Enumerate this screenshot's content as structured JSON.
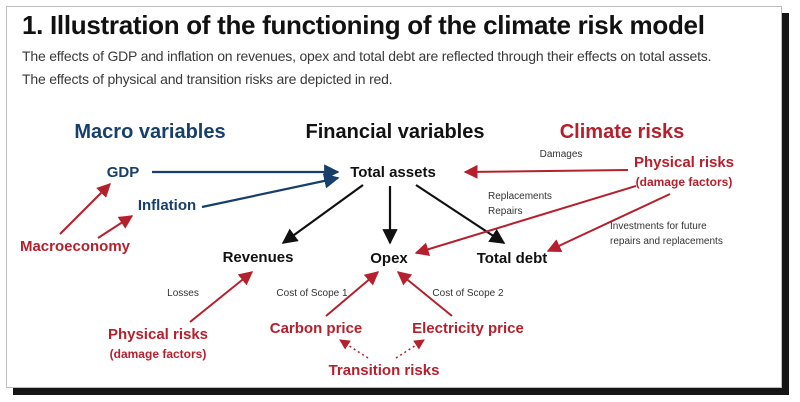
{
  "title": "1.  Illustration of the functioning of the climate risk model",
  "subtitle_line1": "The effects of GDP and inflation on revenues, opex and total debt are reflected through their effects on total assets.",
  "subtitle_line2": "The effects of physical and transition risks are depicted in red.",
  "colors": {
    "macro": "#173f6b",
    "climate": "#b5202e",
    "financial": "#111111",
    "note": "#333333"
  },
  "headers": {
    "macro": "Macro variables",
    "financial": "Financial variables",
    "climate": "Climate risks"
  },
  "nodes": {
    "gdp": "GDP",
    "inflation": "Inflation",
    "macroeconomy": "Macroeconomy",
    "total_assets": "Total assets",
    "revenues": "Revenues",
    "opex": "Opex",
    "total_debt": "Total debt",
    "physical_risks_right": "Physical risks",
    "physical_risks_right_sub": "(damage factors)",
    "physical_risks_left": "Physical risks",
    "physical_risks_left_sub": "(damage factors)",
    "carbon_price": "Carbon price",
    "electricity_price": "Electricity price",
    "transition_risks": "Transition risks"
  },
  "edge_labels": {
    "damages": "Damages",
    "replacements": "Replacements",
    "repairs": "Repairs",
    "investments_line1": "Investments for future",
    "investments_line2": "repairs and replacements",
    "losses": "Losses",
    "scope1": "Cost of Scope 1",
    "scope2": "Cost of Scope 2"
  }
}
